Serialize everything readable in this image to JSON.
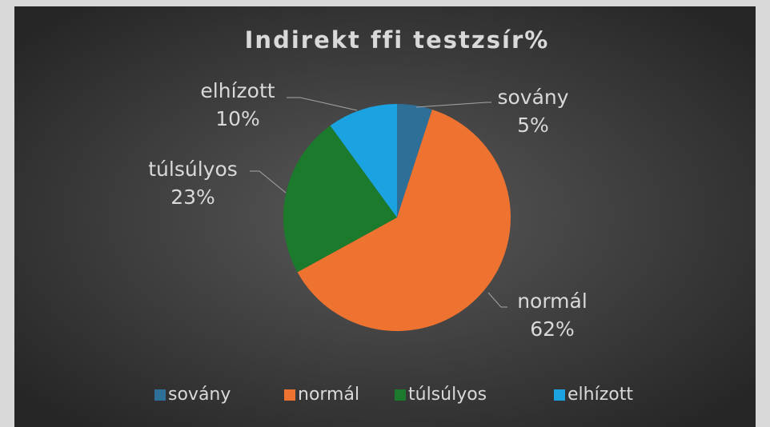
{
  "chart_data": {
    "type": "pie",
    "title": "Indirekt ffi testzsír%",
    "categories": [
      "sovány",
      "normál",
      "túlsúlyos",
      "elhízott"
    ],
    "values": [
      5,
      62,
      23,
      10
    ],
    "value_labels": [
      "5%",
      "62%",
      "23%",
      "10%"
    ],
    "colors": [
      "#2e6f98",
      "#ee7230",
      "#1b7a2b",
      "#1aa3e0"
    ],
    "legend": "bottom"
  }
}
